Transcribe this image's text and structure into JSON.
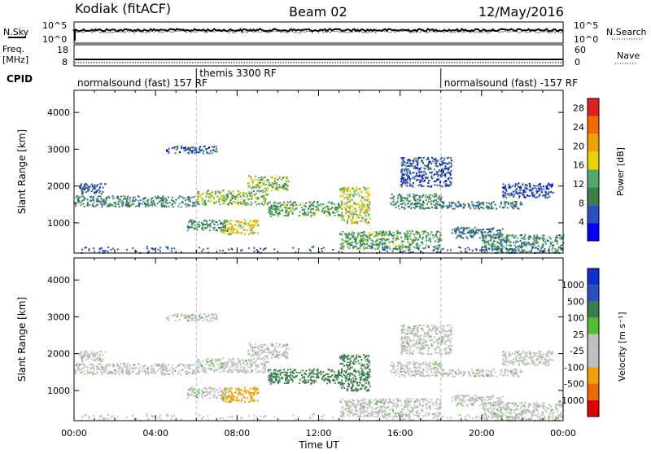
{
  "header": {
    "title_left": "Kodiak (fitACF)",
    "title_center": "Beam 02",
    "title_right": "12/May/2016"
  },
  "nsky_panel": {
    "left_label": "N.Sky",
    "right_label": "N.Search",
    "left_ticks": [
      "10^5",
      "10^0"
    ],
    "right_ticks": [
      "10^5",
      "10^0"
    ]
  },
  "freq_panel": {
    "left_label_1": "Freq.",
    "left_label_2": "[MHz]",
    "right_label": "Nave",
    "left_ticks": [
      "18",
      "8"
    ],
    "right_ticks": [
      "60",
      "0"
    ]
  },
  "cpid": {
    "label": "CPID",
    "segments": [
      {
        "start_hour": 0,
        "text": "normalsound (fast) 157 RF"
      },
      {
        "start_hour": 6,
        "text": "themis 3300 RF"
      },
      {
        "start_hour": 18,
        "text": "normalsound (fast) -157 RF"
      }
    ]
  },
  "colors": {
    "power_scale": [
      "#0000ff",
      "#2a4fbf",
      "#3a7e4a",
      "#4fa86e",
      "#e8d400",
      "#f0a000",
      "#ef6a00",
      "#e02020"
    ],
    "velocity_scale": [
      "#e00000",
      "#ef6a00",
      "#f0a000",
      "#c0c0c0",
      "#c0c0c0",
      "#50c030",
      "#3a7e4a",
      "#2a4fbf",
      "#1030d0"
    ]
  },
  "chart_data": [
    {
      "type": "heatmap",
      "name": "power",
      "xlabel": "",
      "ylabel": "Slant Range [km]",
      "xlim": [
        0,
        24
      ],
      "ylim": [
        180,
        4600
      ],
      "yticks": [
        "1000",
        "2000",
        "3000",
        "4000"
      ],
      "yticks_values": [
        1000,
        2000,
        3000,
        4000
      ],
      "colorbar_label": "Power [dB]",
      "colorbar_ticks": [
        "4",
        "8",
        "12",
        "16",
        "20",
        "24",
        "28"
      ],
      "colorbar_range": [
        0,
        30
      ]
    },
    {
      "type": "heatmap",
      "name": "velocity",
      "xlabel": "Time UT",
      "ylabel": "Slant Range [km]",
      "xlim": [
        0,
        24
      ],
      "ylim": [
        180,
        4600
      ],
      "xticks": [
        "00:00",
        "04:00",
        "08:00",
        "12:00",
        "16:00",
        "20:00",
        "00:00"
      ],
      "yticks": [
        "1000",
        "2000",
        "3000",
        "4000"
      ],
      "yticks_values": [
        1000,
        2000,
        3000,
        4000
      ],
      "colorbar_label": "Velocity [m s⁻¹]",
      "colorbar_ticks": [
        "1000",
        "500",
        "100",
        "25",
        "-25",
        "-100",
        "-500",
        "-1000"
      ]
    }
  ],
  "echo_regions": [
    {
      "t0": 0.0,
      "t1": 6.0,
      "r0": 1450,
      "r1": 1750,
      "power": 10,
      "vel": 0
    },
    {
      "t0": 6.0,
      "t1": 9.5,
      "r0": 1500,
      "r1": 1900,
      "power": 14,
      "vel": 0
    },
    {
      "t0": 8.5,
      "t1": 10.5,
      "r0": 1900,
      "r1": 2300,
      "power": 14,
      "vel": 0
    },
    {
      "t0": 0.2,
      "t1": 1.5,
      "r0": 1800,
      "r1": 2100,
      "power": 6,
      "vel": 0
    },
    {
      "t0": 4.5,
      "t1": 7.0,
      "r0": 2900,
      "r1": 3100,
      "power": 6,
      "vel": 0
    },
    {
      "t0": 7.2,
      "t1": 9.0,
      "r0": 700,
      "r1": 1100,
      "power": 18,
      "vel": -300
    },
    {
      "t0": 5.5,
      "t1": 7.5,
      "r0": 800,
      "r1": 1100,
      "power": 10,
      "vel": 0
    },
    {
      "t0": 9.5,
      "t1": 13.0,
      "r0": 1200,
      "r1": 1600,
      "power": 12,
      "vel": 150
    },
    {
      "t0": 13.0,
      "t1": 14.5,
      "r0": 1000,
      "r1": 2000,
      "power": 16,
      "vel": 150
    },
    {
      "t0": 13.0,
      "t1": 18.0,
      "r0": 300,
      "r1": 800,
      "power": 12,
      "vel": 0
    },
    {
      "t0": 15.5,
      "t1": 18.0,
      "r0": 1400,
      "r1": 1800,
      "power": 10,
      "vel": 0
    },
    {
      "t0": 16.0,
      "t1": 18.5,
      "r0": 2000,
      "r1": 2800,
      "power": 6,
      "vel": 0
    },
    {
      "t0": 18.0,
      "t1": 22.0,
      "r0": 1400,
      "r1": 1600,
      "power": 8,
      "vel": 0
    },
    {
      "t0": 18.5,
      "t1": 21.0,
      "r0": 600,
      "r1": 900,
      "power": 8,
      "vel": 0
    },
    {
      "t0": 20.0,
      "t1": 24.0,
      "r0": 200,
      "r1": 700,
      "power": 10,
      "vel": 0
    },
    {
      "t0": 21.0,
      "t1": 23.5,
      "r0": 1700,
      "r1": 2100,
      "power": 6,
      "vel": 0
    }
  ]
}
